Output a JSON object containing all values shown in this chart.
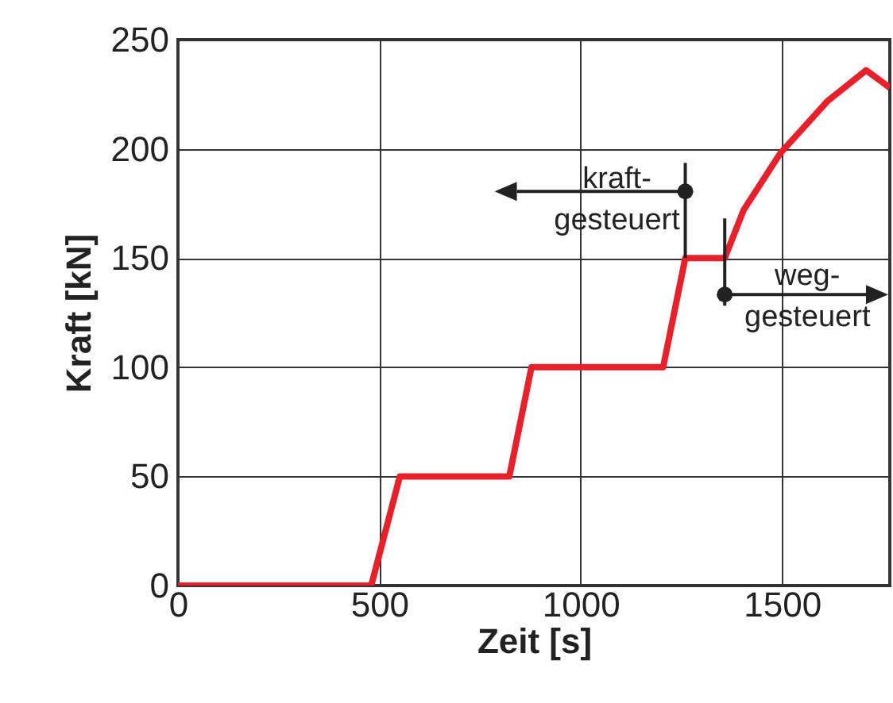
{
  "chart_data": {
    "type": "line",
    "xlabel": "Zeit  [s]",
    "ylabel": "Kraft  [kN]",
    "x": [
      0,
      480,
      551,
      823,
      878,
      1205,
      1260,
      1358,
      1405,
      1496,
      1614,
      1709,
      1768
    ],
    "series": [
      {
        "color": "#e8202a",
        "values": [
          0,
          0,
          50,
          50,
          100,
          100,
          150,
          150,
          172,
          198,
          222,
          236,
          228
        ]
      }
    ],
    "xlim": [
      0,
      1768
    ],
    "xticks": [
      0,
      500,
      1000,
      1500
    ],
    "ylim": [
      0,
      250
    ],
    "yticks": [
      0,
      50,
      100,
      150,
      200,
      250
    ],
    "grid": true,
    "legend": false,
    "marker": "none",
    "line_style": "solid",
    "annotations": [
      {
        "text": "kraft-\ngesteuert",
        "x": 1260,
        "y": 150
      },
      {
        "text": "weg-\ngesteuert",
        "x": 1358,
        "y": 150
      }
    ]
  }
}
